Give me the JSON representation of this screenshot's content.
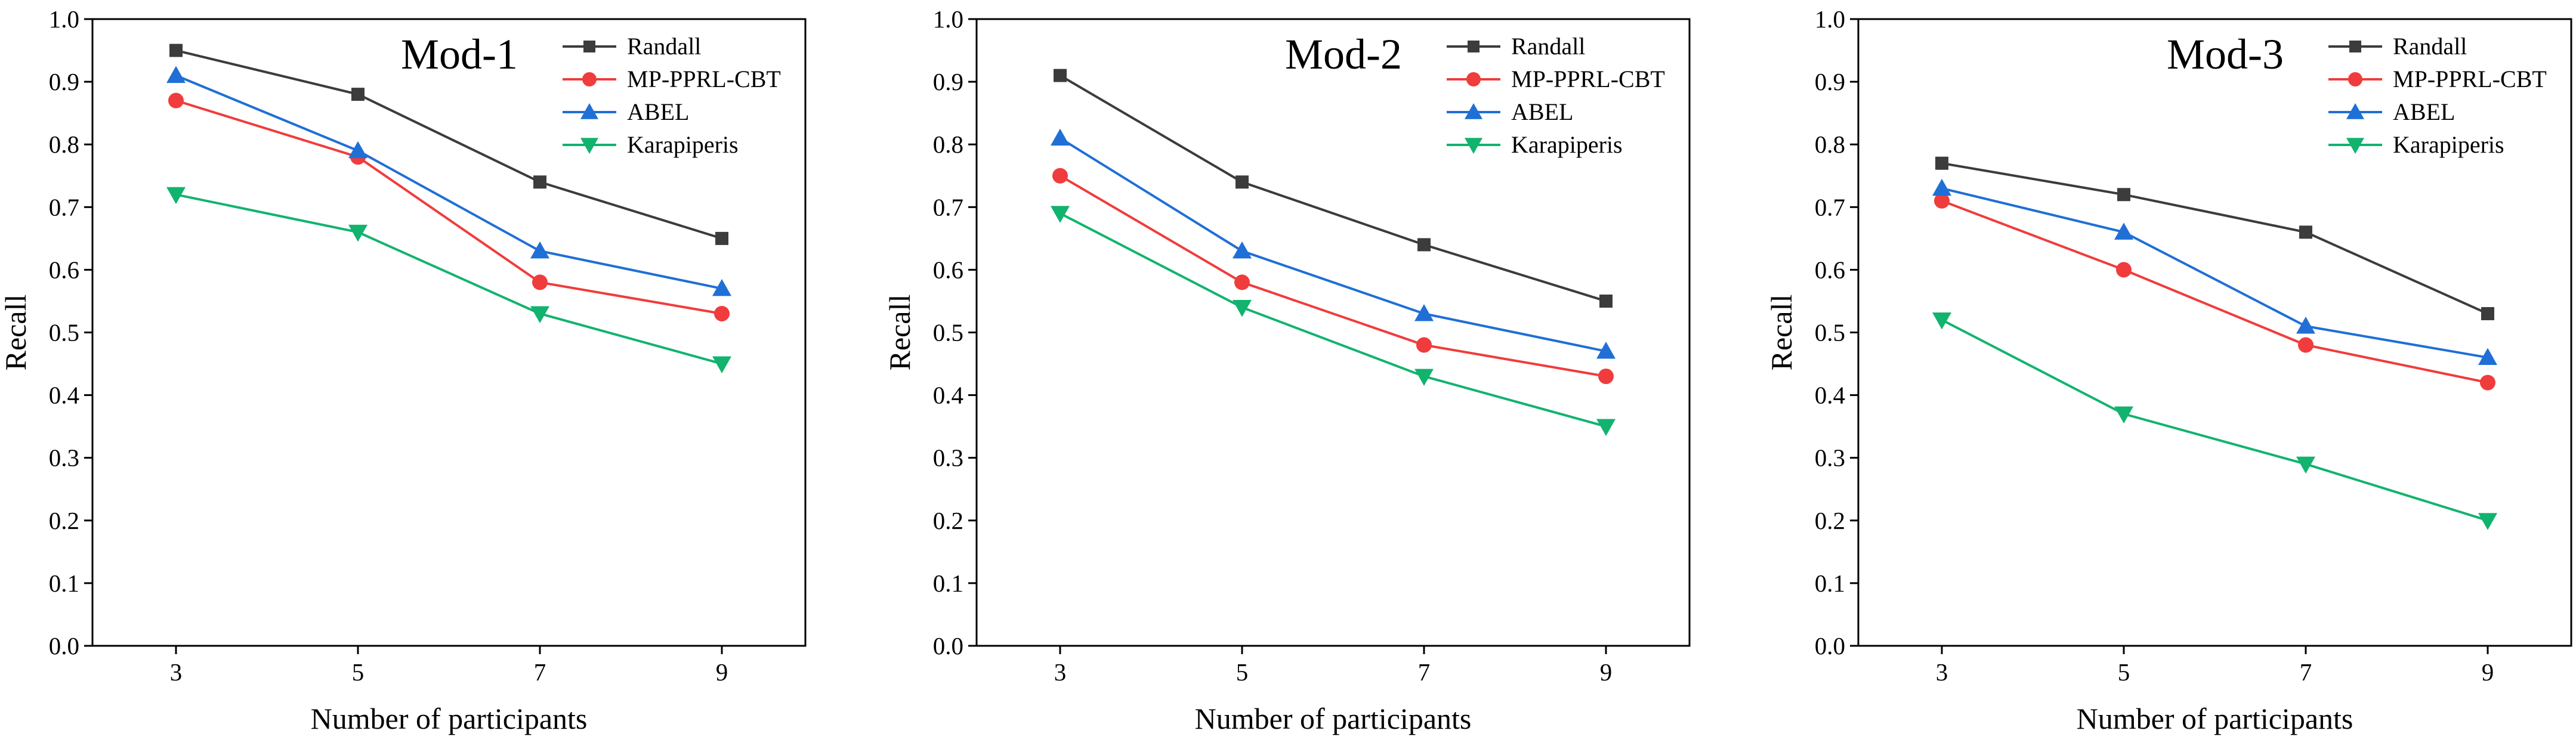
{
  "chart_data": [
    {
      "type": "line",
      "title": "Mod-1",
      "xlabel": "Number of participants",
      "ylabel": "Recall",
      "x": [
        3,
        5,
        7,
        9
      ],
      "ylim": [
        0.0,
        1.0
      ],
      "yticks": [
        "0.0",
        "0.1",
        "0.2",
        "0.3",
        "0.4",
        "0.5",
        "0.6",
        "0.7",
        "0.8",
        "0.9",
        "1.0"
      ],
      "grid": false,
      "legend_position": "top-right",
      "series": [
        {
          "name": "Randall",
          "color": "#3c3c3c",
          "marker": "square",
          "values": [
            0.95,
            0.88,
            0.74,
            0.65
          ]
        },
        {
          "name": "MP-PPRL-CBT",
          "color": "#f03c3c",
          "marker": "circle",
          "values": [
            0.87,
            0.78,
            0.58,
            0.53
          ]
        },
        {
          "name": "ABEL",
          "color": "#1f6fd6",
          "marker": "triangle-up",
          "values": [
            0.91,
            0.79,
            0.63,
            0.57
          ]
        },
        {
          "name": "Karapiperis",
          "color": "#12b36e",
          "marker": "triangle-down",
          "values": [
            0.72,
            0.66,
            0.53,
            0.45
          ]
        }
      ]
    },
    {
      "type": "line",
      "title": "Mod-2",
      "xlabel": "Number of participants",
      "ylabel": "Recall",
      "x": [
        3,
        5,
        7,
        9
      ],
      "ylim": [
        0.0,
        1.0
      ],
      "yticks": [
        "0.0",
        "0.1",
        "0.2",
        "0.3",
        "0.4",
        "0.5",
        "0.6",
        "0.7",
        "0.8",
        "0.9",
        "1.0"
      ],
      "grid": false,
      "legend_position": "top-right",
      "series": [
        {
          "name": "Randall",
          "color": "#3c3c3c",
          "marker": "square",
          "values": [
            0.91,
            0.74,
            0.64,
            0.55
          ]
        },
        {
          "name": "MP-PPRL-CBT",
          "color": "#f03c3c",
          "marker": "circle",
          "values": [
            0.75,
            0.58,
            0.48,
            0.43
          ]
        },
        {
          "name": "ABEL",
          "color": "#1f6fd6",
          "marker": "triangle-up",
          "values": [
            0.81,
            0.63,
            0.53,
            0.47
          ]
        },
        {
          "name": "Karapiperis",
          "color": "#12b36e",
          "marker": "triangle-down",
          "values": [
            0.69,
            0.54,
            0.43,
            0.35
          ]
        }
      ]
    },
    {
      "type": "line",
      "title": "Mod-3",
      "xlabel": "Number of participants",
      "ylabel": "Recall",
      "x": [
        3,
        5,
        7,
        9
      ],
      "ylim": [
        0.0,
        1.0
      ],
      "yticks": [
        "0.0",
        "0.1",
        "0.2",
        "0.3",
        "0.4",
        "0.5",
        "0.6",
        "0.7",
        "0.8",
        "0.9",
        "1.0"
      ],
      "grid": false,
      "legend_position": "top-right",
      "series": [
        {
          "name": "Randall",
          "color": "#3c3c3c",
          "marker": "square",
          "values": [
            0.77,
            0.72,
            0.66,
            0.53
          ]
        },
        {
          "name": "MP-PPRL-CBT",
          "color": "#f03c3c",
          "marker": "circle",
          "values": [
            0.71,
            0.6,
            0.48,
            0.42
          ]
        },
        {
          "name": "ABEL",
          "color": "#1f6fd6",
          "marker": "triangle-up",
          "values": [
            0.73,
            0.66,
            0.51,
            0.46
          ]
        },
        {
          "name": "Karapiperis",
          "color": "#12b36e",
          "marker": "triangle-down",
          "values": [
            0.52,
            0.37,
            0.29,
            0.2
          ]
        }
      ]
    }
  ]
}
